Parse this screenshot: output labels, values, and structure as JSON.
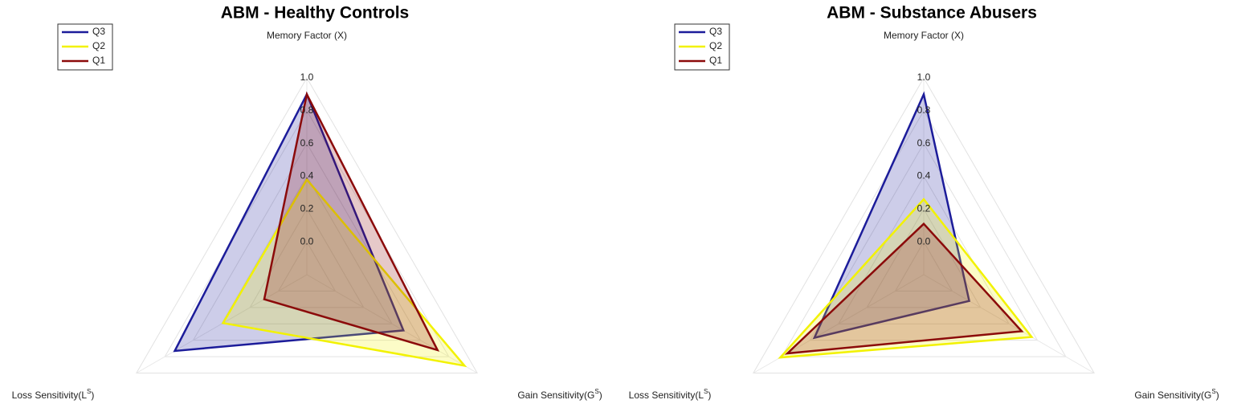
{
  "chart_data": [
    {
      "type": "radar",
      "title": "ABM - Healthy Controls",
      "axes": [
        {
          "text": "Memory Factor (X)"
        },
        {
          "text": "Gain Sensitivity(G",
          "sup": "S",
          "tail": ")"
        },
        {
          "text": "Loss Sensitivity(L",
          "sup": "S",
          "tail": ")"
        }
      ],
      "rlim": [
        -0.2,
        1.0
      ],
      "rticks": [
        {
          "value": 0,
          "label": "0.0"
        },
        0.2,
        0.4,
        0.6,
        0.8,
        {
          "value": 1,
          "label": "1.0"
        }
      ],
      "series": [
        {
          "name": "Q3",
          "color": "#1c1c9a",
          "values": [
            0.9,
            0.48,
            0.73
          ]
        },
        {
          "name": "Q2",
          "color": "#f2f200",
          "values": [
            0.38,
            0.91,
            0.39
          ]
        },
        {
          "name": "Q1",
          "color": "#8b0a0a",
          "values": [
            0.9,
            0.72,
            0.1
          ]
        }
      ]
    },
    {
      "type": "radar",
      "title": "ABM - Substance Abusers",
      "axes": [
        {
          "text": "Memory Factor (X)"
        },
        {
          "text": "Gain Sensitivity(G",
          "sup": "S",
          "tail": ")"
        },
        {
          "text": "Loss Sensitivity(L",
          "sup": "S",
          "tail": ")"
        }
      ],
      "rlim": [
        -0.2,
        1.0
      ],
      "rticks": [
        {
          "value": 0,
          "label": "0.0"
        },
        0.2,
        0.4,
        0.6,
        0.8,
        {
          "value": 1,
          "label": "1.0"
        }
      ],
      "series": [
        {
          "name": "Q3",
          "color": "#1c1c9a",
          "values": [
            0.9,
            0.12,
            0.57
          ]
        },
        {
          "name": "Q2",
          "color": "#f2f200",
          "values": [
            0.26,
            0.56,
            0.81
          ]
        },
        {
          "name": "Q1",
          "color": "#8b0a0a",
          "values": [
            0.11,
            0.49,
            0.76
          ]
        }
      ]
    }
  ]
}
